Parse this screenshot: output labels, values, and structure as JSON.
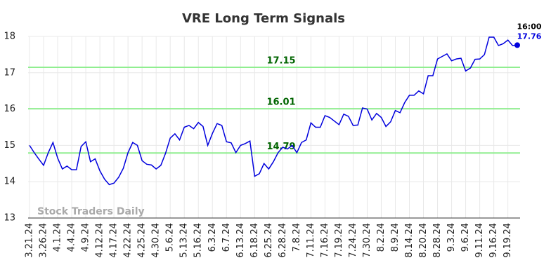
{
  "chart_data": {
    "type": "line",
    "title": "VRE Long Term Signals",
    "watermark": "Stock Traders Daily",
    "last_time": "16:00",
    "xlim": [
      0,
      104
    ],
    "xticks": [
      {
        "value": 0,
        "label": "3.21.24"
      },
      {
        "value": 3,
        "label": "3.26.24"
      },
      {
        "value": 6,
        "label": "4.1.24"
      },
      {
        "value": 9,
        "label": "4.4.24"
      },
      {
        "value": 12,
        "label": "4.9.24"
      },
      {
        "value": 15,
        "label": "4.12.24"
      },
      {
        "value": 18,
        "label": "4.17.24"
      },
      {
        "value": 21,
        "label": "4.22.24"
      },
      {
        "value": 24,
        "label": "4.25.24"
      },
      {
        "value": 27,
        "label": "4.30.24"
      },
      {
        "value": 30,
        "label": "5.6.24"
      },
      {
        "value": 33,
        "label": "5.13.24"
      },
      {
        "value": 36,
        "label": "5.16.24"
      },
      {
        "value": 39,
        "label": "6.3.24"
      },
      {
        "value": 42,
        "label": "6.7.24"
      },
      {
        "value": 45,
        "label": "6.13.24"
      },
      {
        "value": 48,
        "label": "6.18.24"
      },
      {
        "value": 51,
        "label": "6.25.24"
      },
      {
        "value": 54,
        "label": "6.28.24"
      },
      {
        "value": 57,
        "label": "7.8.24"
      },
      {
        "value": 60,
        "label": "7.11.24"
      },
      {
        "value": 63,
        "label": "7.16.24"
      },
      {
        "value": 66,
        "label": "7.19.24"
      },
      {
        "value": 69,
        "label": "7.24.24"
      },
      {
        "value": 72,
        "label": "7.30.24"
      },
      {
        "value": 75,
        "label": "8.2.24"
      },
      {
        "value": 78,
        "label": "8.9.24"
      },
      {
        "value": 81,
        "label": "8.14.24"
      },
      {
        "value": 84,
        "label": "8.20.24"
      },
      {
        "value": 87,
        "label": "8.28.24"
      },
      {
        "value": 90,
        "label": "9.3.24"
      },
      {
        "value": 93,
        "label": "9.6.24"
      },
      {
        "value": 96,
        "label": "9.11.24"
      },
      {
        "value": 99,
        "label": "9.16.24"
      },
      {
        "value": 102,
        "label": "9.19.24"
      }
    ],
    "ylim": [
      13,
      18
    ],
    "yticks": [
      13,
      14,
      15,
      16,
      17,
      18
    ],
    "grid": true,
    "hlines": [
      17.15,
      16.01,
      14.79
    ],
    "hline_color": "#90ee90",
    "hline_label_color": "#006400",
    "series": [
      {
        "name": "VRE",
        "color": "#0000dd",
        "values": [
          15.0,
          14.8,
          14.62,
          14.45,
          14.8,
          15.08,
          14.65,
          14.35,
          14.43,
          14.33,
          14.33,
          14.97,
          15.1,
          14.55,
          14.63,
          14.3,
          14.07,
          13.92,
          13.96,
          14.12,
          14.37,
          14.8,
          15.08,
          15.0,
          14.58,
          14.48,
          14.46,
          14.35,
          14.45,
          14.78,
          15.2,
          15.32,
          15.15,
          15.5,
          15.55,
          15.46,
          15.63,
          15.52,
          15.0,
          15.33,
          15.6,
          15.55,
          15.1,
          15.07,
          14.8,
          15.0,
          15.05,
          15.12,
          14.15,
          14.22,
          14.5,
          14.35,
          14.55,
          14.8,
          14.95,
          14.9,
          15.0,
          14.8,
          15.08,
          15.15,
          15.62,
          15.5,
          15.5,
          15.82,
          15.77,
          15.67,
          15.57,
          15.86,
          15.8,
          15.55,
          15.56,
          16.03,
          16.0,
          15.7,
          15.88,
          15.77,
          15.52,
          15.65,
          15.96,
          15.9,
          16.18,
          16.38,
          16.38,
          16.5,
          16.42,
          16.92,
          16.92,
          17.38,
          17.45,
          17.52,
          17.33,
          17.38,
          17.4,
          17.05,
          17.13,
          17.37,
          17.38,
          17.5,
          17.98,
          17.98,
          17.75,
          17.8,
          17.9,
          17.75,
          17.76
        ]
      }
    ]
  }
}
